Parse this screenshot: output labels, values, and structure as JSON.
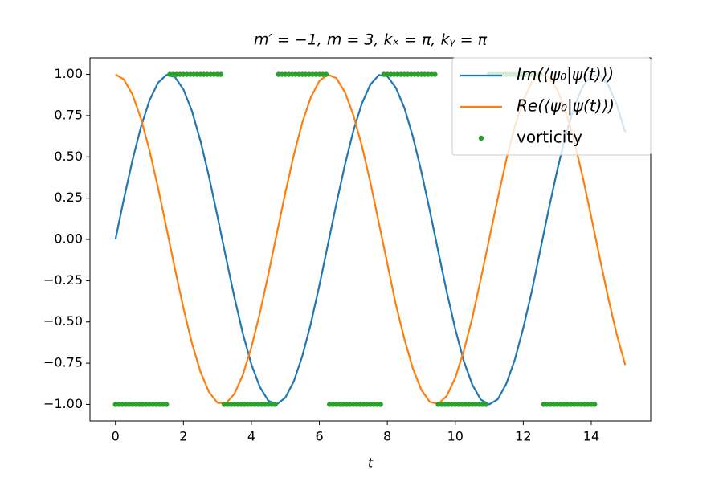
{
  "chart_data": {
    "type": "line",
    "title": "m′ = −1,  m = 3,  kₓ = π,  kᵧ = π",
    "xlabel": "t",
    "xlim": [
      -0.75,
      15.75
    ],
    "ylim": [
      -1.1,
      1.1
    ],
    "xticks": [
      0,
      2,
      4,
      6,
      8,
      10,
      12,
      14
    ],
    "yticks": [
      {
        "value": 1,
        "label": "1.00"
      },
      {
        "value": 0.75,
        "label": "0.75"
      },
      {
        "value": 0.5,
        "label": "0.50"
      },
      {
        "value": 0.25,
        "label": "0.25"
      },
      {
        "value": 0,
        "label": "0.00"
      },
      {
        "value": -0.25,
        "label": "−0.25"
      },
      {
        "value": -0.5,
        "label": "−0.50"
      },
      {
        "value": -0.75,
        "label": "−0.75"
      },
      {
        "value": -1,
        "label": "−1.00"
      }
    ],
    "legend": "upper right",
    "series": [
      {
        "name": "Im(⟨ψ₀|ψ(t)⟩)",
        "color": "#1f77b4",
        "mode": "line",
        "x": [
          0,
          0.25,
          0.5,
          0.75,
          1,
          1.25,
          1.5,
          1.75,
          2,
          2.25,
          2.5,
          2.75,
          3,
          3.25,
          3.5,
          3.75,
          4,
          4.25,
          4.5,
          4.75,
          5,
          5.25,
          5.5,
          5.75,
          6,
          6.25,
          6.5,
          6.75,
          7,
          7.25,
          7.5,
          7.75,
          8,
          8.25,
          8.5,
          8.75,
          9,
          9.25,
          9.5,
          9.75,
          10,
          10.25,
          10.5,
          10.75,
          11,
          11.25,
          11.5,
          11.75,
          12,
          12.25,
          12.5,
          12.75,
          13,
          13.25,
          13.5,
          13.75,
          14,
          14.25,
          14.5,
          14.75,
          15
        ],
        "values": [
          0,
          0.247,
          0.479,
          0.682,
          0.841,
          0.949,
          0.997,
          0.984,
          0.909,
          0.778,
          0.598,
          0.382,
          0.141,
          -0.108,
          -0.351,
          -0.572,
          -0.757,
          -0.895,
          -0.978,
          -0.999,
          -0.959,
          -0.859,
          -0.706,
          -0.51,
          -0.279,
          -0.033,
          0.215,
          0.45,
          0.657,
          0.823,
          0.938,
          0.996,
          0.989,
          0.919,
          0.798,
          0.624,
          0.412,
          0.174,
          -0.075,
          -0.319,
          -0.544,
          -0.737,
          -0.88,
          -0.971,
          -1,
          -0.969,
          -0.875,
          -0.73,
          -0.537,
          -0.316,
          -0.066,
          0.183,
          0.42,
          0.632,
          0.804,
          0.926,
          0.991,
          0.994,
          0.935,
          0.818,
          0.65
        ]
      },
      {
        "name": "Re(⟨ψ₀|ψ(t)⟩)",
        "color": "#ff7f0e",
        "mode": "line",
        "x": [
          0,
          0.25,
          0.5,
          0.75,
          1,
          1.25,
          1.5,
          1.75,
          2,
          2.25,
          2.5,
          2.75,
          3,
          3.25,
          3.5,
          3.75,
          4,
          4.25,
          4.5,
          4.75,
          5,
          5.25,
          5.5,
          5.75,
          6,
          6.25,
          6.5,
          6.75,
          7,
          7.25,
          7.5,
          7.75,
          8,
          8.25,
          8.5,
          8.75,
          9,
          9.25,
          9.5,
          9.75,
          10,
          10.25,
          10.5,
          10.75,
          11,
          11.25,
          11.5,
          11.75,
          12,
          12.25,
          12.5,
          12.75,
          13,
          13.25,
          13.5,
          13.75,
          14,
          14.25,
          14.5,
          14.75,
          15
        ],
        "values": [
          1,
          0.969,
          0.878,
          0.732,
          0.54,
          0.315,
          0.071,
          -0.178,
          -0.416,
          -0.628,
          -0.801,
          -0.924,
          -0.99,
          -0.994,
          -0.936,
          -0.82,
          -0.654,
          -0.446,
          -0.211,
          0.037,
          0.284,
          0.512,
          0.709,
          0.861,
          0.96,
          0.999,
          0.977,
          0.893,
          0.754,
          0.568,
          0.347,
          0.1,
          -0.146,
          -0.394,
          -0.602,
          -0.781,
          -0.911,
          -0.985,
          -0.997,
          -0.948,
          -0.839,
          -0.676,
          -0.476,
          -0.24,
          0.004,
          0.248,
          0.482,
          0.683,
          0.844,
          0.951,
          0.998,
          0.983,
          0.907,
          0.775,
          0.595,
          0.378,
          0.137,
          -0.111,
          -0.354,
          -0.575,
          -0.76
        ]
      },
      {
        "name": "vorticity",
        "color": "#2ca02c",
        "mode": "markers",
        "x": [
          0,
          0.1,
          0.2,
          0.3,
          0.4,
          0.5,
          0.6,
          0.7,
          0.8,
          0.9,
          1,
          1.1,
          1.2,
          1.3,
          1.4,
          1.5,
          1.6,
          1.7,
          1.8,
          1.9,
          2,
          2.1,
          2.2,
          2.3,
          2.4,
          2.5,
          2.6,
          2.7,
          2.8,
          2.9,
          3,
          3.1,
          3.2,
          3.3,
          3.4,
          3.5,
          3.6,
          3.7,
          3.8,
          3.9,
          4,
          4.1,
          4.2,
          4.3,
          4.4,
          4.5,
          4.6,
          4.7,
          4.8,
          4.9,
          5,
          5.1,
          5.2,
          5.3,
          5.4,
          5.5,
          5.6,
          5.7,
          5.8,
          5.9,
          6,
          6.1,
          6.2,
          6.3,
          6.4,
          6.5,
          6.6,
          6.7,
          6.8,
          6.9,
          7,
          7.1,
          7.2,
          7.3,
          7.4,
          7.5,
          7.6,
          7.7,
          7.8,
          7.9,
          8,
          8.1,
          8.2,
          8.3,
          8.4,
          8.5,
          8.6,
          8.7,
          8.8,
          8.9,
          9,
          9.1,
          9.2,
          9.3,
          9.4,
          9.5,
          9.6,
          9.7,
          9.8,
          9.9,
          10,
          10.1,
          10.2,
          10.3,
          10.4,
          10.5,
          10.6,
          10.7,
          10.8,
          10.9,
          11,
          11.1,
          11.2,
          11.3,
          11.4,
          11.5,
          11.6,
          11.7,
          11.8,
          11.9,
          12,
          12.1,
          12.2,
          12.3,
          12.4,
          12.5,
          12.6,
          12.7,
          12.8,
          12.9,
          13,
          13.1,
          13.2,
          13.3,
          13.4,
          13.5,
          13.6,
          13.7,
          13.8,
          13.9,
          14,
          14.1
        ],
        "values": [
          -1,
          -1,
          -1,
          -1,
          -1,
          -1,
          -1,
          -1,
          -1,
          -1,
          -1,
          -1,
          -1,
          -1,
          -1,
          -1,
          1,
          1,
          1,
          1,
          1,
          1,
          1,
          1,
          1,
          1,
          1,
          1,
          1,
          1,
          1,
          1,
          -1,
          -1,
          -1,
          -1,
          -1,
          -1,
          -1,
          -1,
          -1,
          -1,
          -1,
          -1,
          -1,
          -1,
          -1,
          -1,
          1,
          1,
          1,
          1,
          1,
          1,
          1,
          1,
          1,
          1,
          1,
          1,
          1,
          1,
          1,
          -1,
          -1,
          -1,
          -1,
          -1,
          -1,
          -1,
          -1,
          -1,
          -1,
          -1,
          -1,
          -1,
          -1,
          -1,
          -1,
          1,
          1,
          1,
          1,
          1,
          1,
          1,
          1,
          1,
          1,
          1,
          1,
          1,
          1,
          1,
          1,
          -1,
          -1,
          -1,
          -1,
          -1,
          -1,
          -1,
          -1,
          -1,
          -1,
          -1,
          -1,
          -1,
          -1,
          -1,
          1,
          1,
          1,
          1,
          1,
          1,
          1,
          1,
          1,
          1,
          1,
          1,
          1,
          1,
          1,
          1,
          -1,
          -1,
          -1,
          -1,
          -1,
          -1,
          -1,
          -1,
          -1,
          -1,
          -1,
          -1,
          -1,
          -1,
          -1,
          -1
        ]
      }
    ]
  }
}
